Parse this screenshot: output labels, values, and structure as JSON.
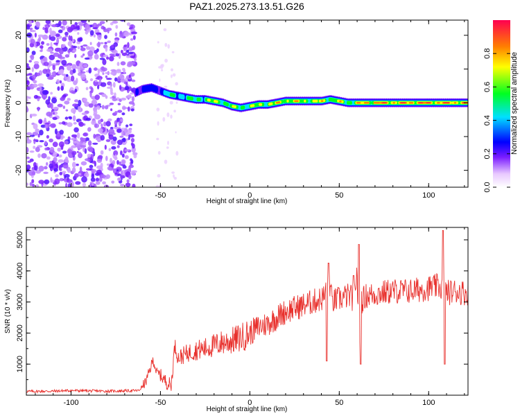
{
  "title": "PAZ1.2025.273.13.51.G26",
  "colors": {
    "snr_line": "#e8302c",
    "frame": "#000000",
    "sparse_purple": "#8a2be2"
  },
  "chart_data": [
    {
      "type": "heatmap",
      "name": "spectrogram",
      "title": "PAZ1.2025.273.13.51.G26",
      "xlabel": "Height of straight line (km)",
      "ylabel": "Frequency (Hz)",
      "xlim": [
        -125,
        122
      ],
      "ylim": [
        -25,
        24.5
      ],
      "xticks": [
        -100,
        -50,
        0,
        50,
        100
      ],
      "yticks": [
        -20,
        -10,
        0,
        10,
        20
      ],
      "colorbar": {
        "label": "Normalized spectral amplitude",
        "range": [
          0,
          1
        ],
        "ticks": [
          0.0,
          0.2,
          0.4,
          0.6,
          0.8
        ],
        "tick_labels": [
          "0.0",
          "0.2",
          "0.4",
          "0.6",
          "0.8"
        ]
      },
      "noise_region_x": [
        -125,
        -64
      ],
      "ridge": {
        "x": [
          -64,
          -60,
          -55,
          -50,
          -45,
          -40,
          -35,
          -30,
          -25,
          -20,
          -15,
          -10,
          -5,
          0,
          5,
          10,
          15,
          20,
          25,
          30,
          35,
          40,
          45,
          50,
          55,
          60,
          65,
          70,
          80,
          90,
          100,
          110,
          122
        ],
        "freq": [
          3,
          4,
          4.5,
          3.5,
          2.5,
          2,
          1.5,
          1,
          1,
          0.5,
          0,
          -1,
          -1.5,
          -1,
          -0.5,
          -0.5,
          0,
          0.5,
          0.5,
          0.5,
          0.5,
          0.5,
          1,
          0.5,
          0,
          0,
          0,
          0,
          0,
          0,
          0,
          0,
          0
        ],
        "amplitude": [
          0.3,
          0.4,
          0.35,
          0.4,
          0.55,
          0.6,
          0.6,
          0.65,
          0.7,
          0.75,
          0.75,
          0.7,
          0.7,
          0.7,
          0.75,
          0.8,
          0.85,
          0.85,
          0.85,
          0.8,
          0.8,
          0.8,
          0.8,
          0.75,
          0.75,
          0.8,
          0.95,
          1.0,
          1.0,
          1.0,
          1.0,
          1.0,
          1.0
        ]
      }
    },
    {
      "type": "line",
      "name": "snr",
      "xlabel": "Height of straight line (km)",
      "ylabel": "SNR (10 * v/v)",
      "xlim": [
        -125,
        122
      ],
      "ylim": [
        0,
        5400
      ],
      "xticks": [
        -100,
        -50,
        0,
        50,
        100
      ],
      "yticks": [
        1000,
        2000,
        3000,
        4000,
        5000
      ],
      "series": [
        {
          "name": "SNR",
          "x": [
            -125,
            -110,
            -100,
            -90,
            -80,
            -70,
            -62,
            -58,
            -56,
            -54,
            -52,
            -50,
            -48,
            -46,
            -44,
            -42,
            -40,
            -35,
            -30,
            -25,
            -20,
            -15,
            -10,
            -5,
            0,
            5,
            10,
            15,
            20,
            25,
            30,
            35,
            40,
            42,
            44,
            46,
            50,
            55,
            58,
            60,
            61,
            62,
            65,
            70,
            75,
            80,
            85,
            90,
            95,
            100,
            105,
            108,
            109,
            110,
            115,
            120,
            122
          ],
          "y": [
            120,
            130,
            150,
            140,
            130,
            140,
            150,
            450,
            800,
            1150,
            700,
            650,
            500,
            400,
            300,
            1600,
            1200,
            1350,
            1450,
            1500,
            1600,
            1700,
            1750,
            1850,
            2000,
            2200,
            2300,
            2500,
            2700,
            2800,
            2900,
            3000,
            3100,
            3200,
            3900,
            3000,
            3100,
            3200,
            3100,
            4000,
            1100,
            3000,
            3200,
            3250,
            3300,
            3350,
            3350,
            3350,
            3400,
            3450,
            3500,
            3450,
            3400,
            3300,
            3350,
            3300,
            3300
          ],
          "spikes": [
            [
              43,
              1100
            ],
            [
              44,
              4250
            ],
            [
              58,
              3850
            ],
            [
              61,
              4850
            ],
            [
              62,
              1000
            ],
            [
              108,
              5300
            ],
            [
              109,
              1000
            ]
          ]
        }
      ]
    }
  ]
}
